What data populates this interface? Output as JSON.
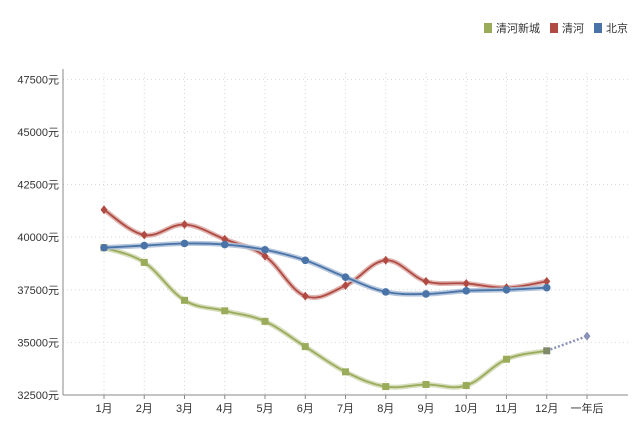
{
  "chart_data": {
    "type": "line",
    "title": "",
    "xlabel": "",
    "ylabel": "",
    "categories": [
      "1月",
      "2月",
      "3月",
      "4月",
      "5月",
      "6月",
      "7月",
      "8月",
      "9月",
      "10月",
      "11月",
      "12月",
      "一年后"
    ],
    "ylim": [
      32500,
      47500
    ],
    "yticks": [
      32500,
      35000,
      37500,
      40000,
      42500,
      45000,
      47500
    ],
    "ytick_labels": [
      "32500元",
      "35000元",
      "37500元",
      "40000元",
      "42500元",
      "45000元",
      "47500元"
    ],
    "grid": true,
    "legend_position": "top-right",
    "series": [
      {
        "name": "清河新城",
        "color": "#9aab5a",
        "marker": "square",
        "values": [
          39500,
          38800,
          37000,
          36500,
          36000,
          34800,
          33600,
          32900,
          33000,
          32950,
          34200,
          34600,
          null
        ],
        "forecast": {
          "from_index": 11,
          "to_index": 12,
          "values": [
            34600,
            35300
          ],
          "color": "#8b92b8"
        }
      },
      {
        "name": "清河",
        "color": "#b04a42",
        "marker": "diamond",
        "values": [
          41300,
          40100,
          40600,
          39900,
          39100,
          37200,
          37700,
          38900,
          37900,
          37800,
          37600,
          37900,
          null
        ]
      },
      {
        "name": "北京",
        "color": "#4a73a8",
        "marker": "circle",
        "values": [
          39500,
          39600,
          39700,
          39650,
          39400,
          38900,
          38100,
          37400,
          37300,
          37450,
          37500,
          37600,
          null
        ]
      }
    ]
  }
}
